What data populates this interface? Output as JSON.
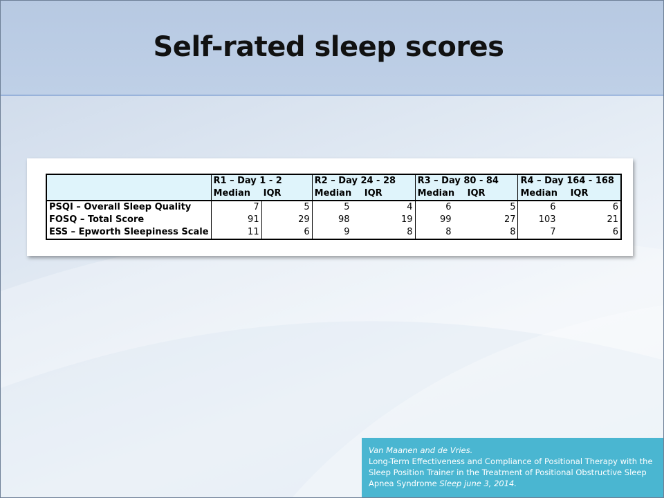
{
  "slide": {
    "title": "Self-rated sleep scores"
  },
  "table": {
    "groups": [
      {
        "label": "R1 – Day 1 - 2",
        "median": "Median",
        "iqr": "IQR"
      },
      {
        "label": "R2 – Day 24 - 28",
        "median": "Median",
        "iqr": "IQR"
      },
      {
        "label": "R3 – Day 80 - 84",
        "median": "Median",
        "iqr": "IQR"
      },
      {
        "label": "R4 – Day 164 - 168",
        "median": "Median",
        "iqr": "IQR"
      }
    ],
    "rows": [
      {
        "label": "PSQI – Overall Sleep Quality",
        "values": [
          "7",
          "5",
          "5",
          "4",
          "6",
          "5",
          "6",
          "6"
        ]
      },
      {
        "label": "FOSQ – Total Score",
        "values": [
          "91",
          "29",
          "98",
          "19",
          "99",
          "27",
          "103",
          "21"
        ]
      },
      {
        "label": "ESS – Epworth Sleepiness Scale",
        "values": [
          "11",
          "6",
          "9",
          "8",
          "8",
          "8",
          "7",
          "6"
        ]
      }
    ]
  },
  "citation": {
    "authors": "Van Maanen and de Vries.",
    "title": "Long-Term Effectiveness and Compliance  of Positional Therapy with the Sleep Position Trainer in the Treatment of Positional Obstructive Sleep Apnea Syndrome",
    "journal": "Sleep june 3, 2014."
  },
  "colors": {
    "header_bg": "#bfd0e7",
    "header_line": "#4a78c2",
    "table_header_bg": "#dff4fb",
    "citation_bg": "#4ab6d1"
  }
}
